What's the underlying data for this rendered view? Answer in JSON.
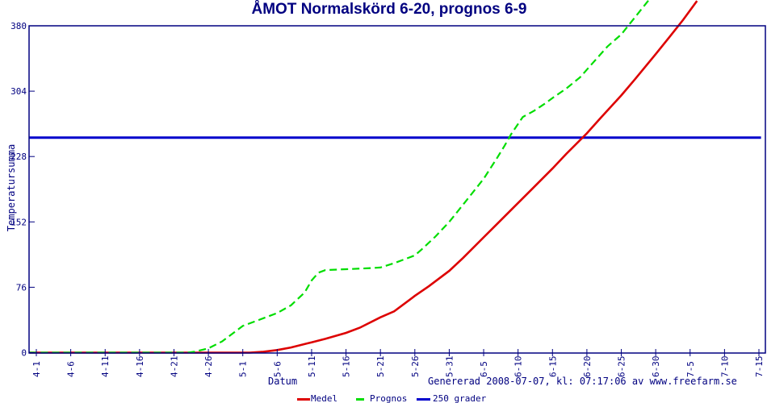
{
  "title": "ÅMOT Normalskörd 6-20, prognos 6-9",
  "footer": "Genererad 2008-07-07, kl: 07:17:06 av www.freefarm.se",
  "colors": {
    "axis": "#000080",
    "title_text": "#000080",
    "background": "#ffffff",
    "medel": "#dd0000",
    "prognos": "#00dd00",
    "grader250": "#0000cc"
  },
  "chart_data": {
    "type": "line",
    "title": "ÅMOT Normalskörd 6-20, prognos 6-9",
    "xlabel": "Datum",
    "ylabel": "Temperatursumma",
    "x_unit": "days since 4-1",
    "x_tick_labels": [
      "4-1",
      "4-6",
      "4-11",
      "4-16",
      "4-21",
      "4-26",
      "5-1",
      "5-6",
      "5-11",
      "5-16",
      "5-21",
      "5-26",
      "5-31",
      "6-5",
      "6-10",
      "6-15",
      "6-20",
      "6-25",
      "6-30",
      "7-5",
      "7-10",
      "7-15"
    ],
    "x_tick_days": [
      0,
      5,
      10,
      15,
      20,
      25,
      30,
      35,
      40,
      45,
      50,
      55,
      60,
      65,
      70,
      75,
      80,
      85,
      90,
      95,
      100,
      105
    ],
    "y_ticks": [
      0,
      76,
      152,
      228,
      304,
      380
    ],
    "ylim": [
      0,
      380
    ],
    "grid": false,
    "legend_position": "bottom",
    "series": [
      {
        "name": "Medel",
        "color": "#dd0000",
        "dash": "solid",
        "width": 2.6,
        "points": [
          [
            -1,
            0
          ],
          [
            31,
            0
          ],
          [
            33,
            1
          ],
          [
            35,
            3
          ],
          [
            37,
            6
          ],
          [
            40,
            12
          ],
          [
            42,
            16
          ],
          [
            45,
            23
          ],
          [
            47,
            29
          ],
          [
            50,
            41
          ],
          [
            52,
            48
          ],
          [
            55,
            66
          ],
          [
            57,
            77
          ],
          [
            60,
            95
          ],
          [
            62,
            110
          ],
          [
            65,
            134
          ],
          [
            67,
            150
          ],
          [
            70,
            174
          ],
          [
            72,
            190
          ],
          [
            75,
            214
          ],
          [
            77,
            231
          ],
          [
            80,
            255
          ],
          [
            82,
            273
          ],
          [
            85,
            299
          ],
          [
            87,
            318
          ],
          [
            90,
            347
          ],
          [
            92,
            367
          ],
          [
            94,
            387
          ],
          [
            96,
            409
          ]
        ]
      },
      {
        "name": "Prognos",
        "color": "#00dd00",
        "dash": "dashed",
        "width": 2.2,
        "points": [
          [
            -1,
            0
          ],
          [
            10,
            0
          ],
          [
            22,
            0
          ],
          [
            23,
            1
          ],
          [
            25,
            5
          ],
          [
            27,
            13
          ],
          [
            30,
            31
          ],
          [
            32,
            37
          ],
          [
            35,
            46
          ],
          [
            37,
            55
          ],
          [
            39,
            70
          ],
          [
            40,
            84
          ],
          [
            41,
            93
          ],
          [
            42,
            96
          ],
          [
            45,
            97
          ],
          [
            48,
            98
          ],
          [
            50,
            99
          ],
          [
            52,
            104
          ],
          [
            55,
            113
          ],
          [
            56,
            120
          ],
          [
            58,
            135
          ],
          [
            60,
            152
          ],
          [
            62,
            172
          ],
          [
            64,
            192
          ],
          [
            65,
            202
          ],
          [
            67,
            227
          ],
          [
            68,
            240
          ],
          [
            69,
            254
          ],
          [
            70,
            266
          ],
          [
            70.7,
            274
          ],
          [
            72.3,
            281
          ],
          [
            74,
            290
          ],
          [
            75,
            296
          ],
          [
            77,
            307
          ],
          [
            79,
            320
          ],
          [
            81,
            338
          ],
          [
            83,
            356
          ],
          [
            85,
            370
          ],
          [
            87,
            390
          ],
          [
            89,
            410
          ]
        ]
      },
      {
        "name": "250 grader",
        "color": "#0000cc",
        "dash": "solid",
        "width": 3,
        "points": [
          [
            -1,
            250
          ],
          [
            105.3,
            250
          ]
        ]
      }
    ]
  }
}
